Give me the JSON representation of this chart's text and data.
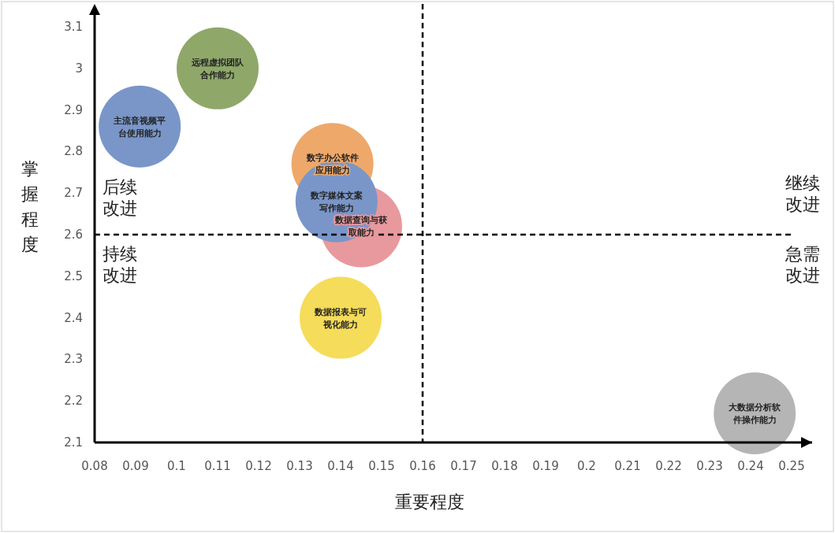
{
  "chart_data": {
    "type": "bubble",
    "xlabel": "重要程度",
    "ylabel": "掌握程度",
    "xlim": [
      0.08,
      0.255
    ],
    "ylim": [
      2.1,
      3.155
    ],
    "xticks": [
      0.08,
      0.09,
      0.1,
      0.11,
      0.12,
      0.13,
      0.14,
      0.15,
      0.16,
      0.17,
      0.18,
      0.19,
      0.2,
      0.21,
      0.22,
      0.23,
      0.24,
      0.25
    ],
    "yticks": [
      2.1,
      2.2,
      2.3,
      2.4,
      2.5,
      2.6,
      2.7,
      2.8,
      2.9,
      3,
      3.1
    ],
    "series": [
      {
        "name": "远程虚拟团队合作能力",
        "color": "#8fa86a",
        "x": [
          0.11
        ],
        "values": [
          3.0
        ],
        "sizes": [
          1
        ]
      },
      {
        "name": "主流音视频平台使用能力",
        "color": "#7a96c8",
        "x": [
          0.091
        ],
        "values": [
          2.86
        ],
        "sizes": [
          1
        ]
      },
      {
        "name": "数字办公软件应用能力",
        "color": "#eea86a",
        "x": [
          0.138
        ],
        "values": [
          2.77
        ],
        "sizes": [
          1
        ]
      },
      {
        "name": "数据查询与获取能力",
        "color": "#e8999e",
        "x": [
          0.145
        ],
        "values": [
          2.62
        ],
        "sizes": [
          1
        ]
      },
      {
        "name": "数字媒体文案写作能力",
        "color": "#7a96c8",
        "x": [
          0.139
        ],
        "values": [
          2.68
        ],
        "sizes": [
          1
        ]
      },
      {
        "name": "数据报表与可视化能力",
        "color": "#f5dc5a",
        "x": [
          0.14
        ],
        "values": [
          2.4
        ],
        "sizes": [
          1
        ]
      },
      {
        "name": "大数据分析软件操作能力",
        "color": "#b5b5b5",
        "x": [
          0.241
        ],
        "values": [
          2.17
        ],
        "sizes": [
          1
        ]
      }
    ],
    "ref_lines": [
      {
        "axis": "x",
        "value": 0.16,
        "line_style": "dashed"
      },
      {
        "axis": "y",
        "value": 2.6,
        "line_style": "dashed"
      }
    ],
    "annotations": [
      "后续改进",
      "继续改进",
      "持续改进",
      "急需改进"
    ],
    "grid": false,
    "legend": false
  }
}
